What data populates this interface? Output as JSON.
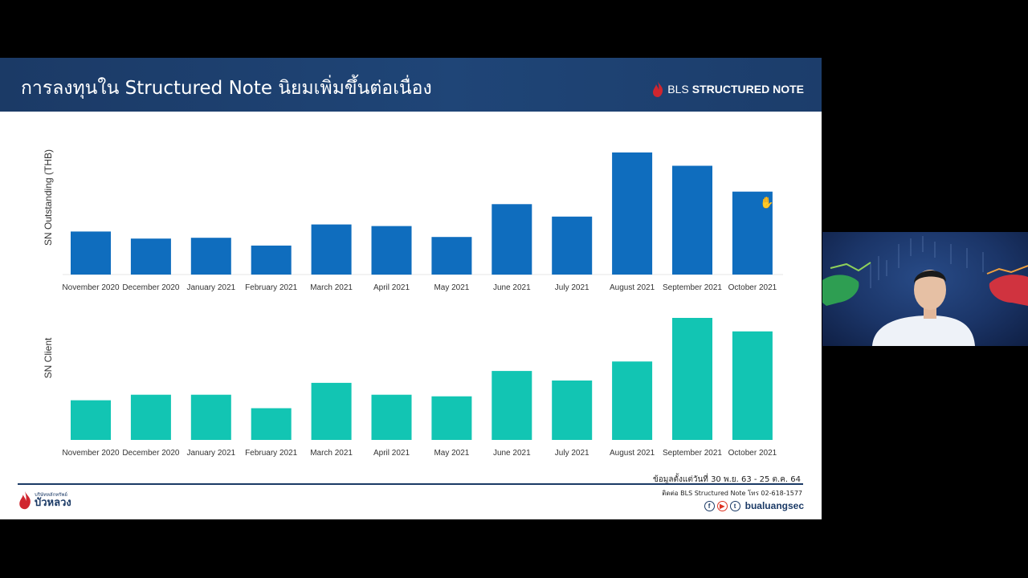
{
  "slide": {
    "title": "การลงทุนใน Structured Note นิยมเพิ่มขึ้นต่อเนื่อง",
    "brand_bls": "BLS",
    "brand_product": "STRUCTURED NOTE",
    "source_note": "ข้อมูลตั้งแต่วันที่ 30 พ.ย. 63 - 25 ต.ค. 64",
    "contact_note": "ติดต่อ BLS Structured Note โทร 02-618-1577",
    "social_handle": "bualuangsec",
    "company_small": "บริษัทหลักทรัพย์",
    "company_name": "บัวหลวง",
    "colors": {
      "header": "#1b3a66",
      "series1": "#0f6dbe",
      "series2": "#12c5b3",
      "brand_red": "#d0262f"
    }
  },
  "chart_data": [
    {
      "type": "bar",
      "ylabel": "SN Outstanding (THB)",
      "categories": [
        "November 2020",
        "December 2020",
        "January 2021",
        "February 2021",
        "March 2021",
        "April 2021",
        "May 2021",
        "June 2021",
        "July 2021",
        "August 2021",
        "September 2021",
        "October 2021"
      ],
      "values": [
        55,
        46,
        47,
        37,
        64,
        62,
        48,
        90,
        74,
        156,
        139,
        106
      ],
      "ylim": [
        0,
        160
      ],
      "grid": false,
      "legend": "none"
    },
    {
      "type": "bar",
      "ylabel": "SN Client",
      "categories": [
        "November 2020",
        "December 2020",
        "January 2021",
        "February 2021",
        "March 2021",
        "April 2021",
        "May 2021",
        "June 2021",
        "July 2021",
        "August 2021",
        "September 2021",
        "October 2021"
      ],
      "values": [
        50,
        57,
        57,
        40,
        72,
        57,
        55,
        87,
        75,
        99,
        154,
        137
      ],
      "ylim": [
        0,
        156
      ],
      "grid": false,
      "legend": "none"
    }
  ]
}
